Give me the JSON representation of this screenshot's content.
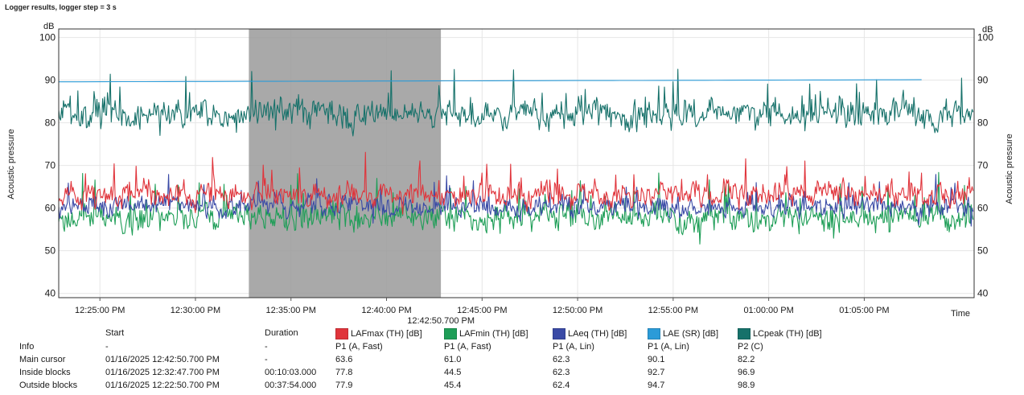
{
  "window": {
    "title": "Logger results, logger step = 3 s"
  },
  "chart_data": {
    "type": "line",
    "title": "",
    "ylabel_left": "Acoustic pressure",
    "ylabel_right": "Acoustic pressure",
    "unit_left": "dB",
    "unit_right": "dB",
    "xlabel": "Time",
    "ylim": [
      39,
      102
    ],
    "y_ticks": [
      40,
      50,
      60,
      70,
      80,
      90,
      100
    ],
    "x_start": "12:22:50.700 PM",
    "x_end": "01:10:45 PM",
    "x_ticks": [
      "12:25:00 PM",
      "12:30:00 PM",
      "12:35:00 PM",
      "12:40:00 PM",
      "12:45:00 PM",
      "12:50:00 PM",
      "12:55:00 PM",
      "01:00:00 PM",
      "01:05:00 PM"
    ],
    "shaded_block": {
      "start": "12:32:47.700 PM",
      "end": "12:42:50.700 PM"
    },
    "cursor_label": "12:42:50.700 PM",
    "grid": true,
    "series": [
      {
        "name": "LAFmax (TH) [dB]",
        "color": "#e0343b",
        "baseline": 63,
        "amplitude": 4.5,
        "seed": 11,
        "spike_prob": 0.08
      },
      {
        "name": "LAFmin (TH) [dB]",
        "color": "#1e9e57",
        "baseline": 58,
        "amplitude": 5.0,
        "seed": 23,
        "spike_prob": 0.1
      },
      {
        "name": "LAeq (TH) [dB]",
        "color": "#3a4aa6",
        "baseline": 60.5,
        "amplitude": 4.0,
        "seed": 37,
        "spike_prob": 0.06
      },
      {
        "name": "LAE (SR) [dB]",
        "color": "#2b9bd8",
        "values_start": 89.6,
        "values_end": 90.1,
        "end_time": "01:08:00 PM"
      },
      {
        "name": "LCpeak (TH) [dB]",
        "color": "#16716a",
        "baseline": 82,
        "amplitude": 5.5,
        "seed": 51,
        "spike_prob": 0.09
      }
    ]
  },
  "results_table": {
    "headers": {
      "start": "Start",
      "duration": "Duration"
    },
    "legend": [
      {
        "label": "LAFmax (TH) [dB]",
        "color": "#e0343b"
      },
      {
        "label": "LAFmin (TH) [dB]",
        "color": "#1e9e57"
      },
      {
        "label": "LAeq (TH) [dB]",
        "color": "#3a4aa6"
      },
      {
        "label": "LAE (SR) [dB]",
        "color": "#2b9bd8"
      },
      {
        "label": "LCpeak (TH) [dB]",
        "color": "#16716a"
      }
    ],
    "rows": [
      {
        "label": "Info",
        "start": "-",
        "duration": "-",
        "values": [
          "P1 (A, Fast)",
          "P1 (A, Fast)",
          "P1 (A, Lin)",
          "P1 (A, Lin)",
          "P2 (C)"
        ]
      },
      {
        "label": "Main cursor",
        "start": "01/16/2025 12:42:50.700 PM",
        "duration": "-",
        "values": [
          "63.6",
          "61.0",
          "62.3",
          "90.1",
          "82.2"
        ]
      },
      {
        "label": "Inside blocks",
        "start": "01/16/2025 12:32:47.700 PM",
        "duration": "00:10:03.000",
        "values": [
          "77.8",
          "44.5",
          "62.3",
          "92.7",
          "96.9"
        ]
      },
      {
        "label": "Outside blocks",
        "start": "01/16/2025 12:22:50.700 PM",
        "duration": "00:37:54.000",
        "values": [
          "77.9",
          "45.4",
          "62.4",
          "94.7",
          "98.9"
        ]
      }
    ]
  }
}
